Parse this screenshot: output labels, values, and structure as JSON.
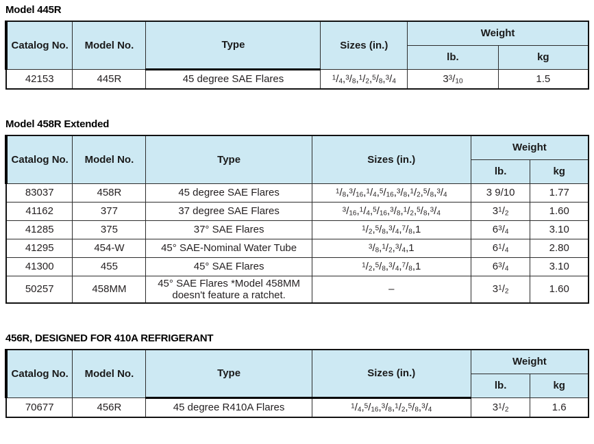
{
  "colors": {
    "header_fill": "#cde9f3",
    "border": "#1a1a1a",
    "text": "#231f20"
  },
  "headers": {
    "catalog": "Catalog No.",
    "model": "Model No.",
    "type": "Type",
    "sizes": "Sizes (in.)",
    "weight": "Weight",
    "lb": "lb.",
    "kg": "kg"
  },
  "tables": [
    {
      "title": "Model 445R",
      "rows": [
        {
          "catalog": "42153",
          "model": "445R",
          "type": "45 degree SAE Flares",
          "sizes": "1/4,3/8,1/2,5/8,3/4",
          "lb": "3^3/10",
          "kg": "1.5"
        }
      ]
    },
    {
      "title": "Model 458R Extended",
      "rows": [
        {
          "catalog": "83037",
          "model": "458R",
          "type": "45 degree SAE Flares",
          "sizes": "1/8,3/16,1/4,5/16,3/8,1/2,5/8,3/4",
          "lb": "3 9/10",
          "kg": "1.77"
        },
        {
          "catalog": "41162",
          "model": "377",
          "type": "37 degree SAE Flares",
          "sizes": "3/16,1/4,5/16,3/8,1/2,5/8,3/4",
          "lb": "3^1/2",
          "kg": "1.60"
        },
        {
          "catalog": "41285",
          "model": "375",
          "type": "37° SAE Flares",
          "sizes": "1/2,5/8,3/4,7/8,1",
          "lb": "6^3/4",
          "kg": "3.10"
        },
        {
          "catalog": "41295",
          "model": "454-W",
          "type": "45° SAE-Nominal Water Tube",
          "sizes": "3/8,1/2,3/4,1",
          "lb": "6^1/4",
          "kg": "2.80"
        },
        {
          "catalog": "41300",
          "model": "455",
          "type": "45° SAE Flares",
          "sizes": "1/2,5/8,3/4,7/8,1",
          "lb": "6^3/4",
          "kg": "3.10"
        },
        {
          "catalog": "50257",
          "model": "458MM",
          "type": "45° SAE Flares *Model 458MM doesn't feature a ratchet.",
          "sizes": "–",
          "lb": "3^1/2",
          "kg": "1.60"
        }
      ]
    },
    {
      "title": "456R, DESIGNED FOR 410A REFRIGERANT",
      "rows": [
        {
          "catalog": "70677",
          "model": "456R",
          "type": "45 degree R410A Flares",
          "sizes": "1/4,5/16,3/8,1/2,5/8,3/4",
          "lb": "3^1/2",
          "kg": "1.6"
        }
      ]
    }
  ]
}
